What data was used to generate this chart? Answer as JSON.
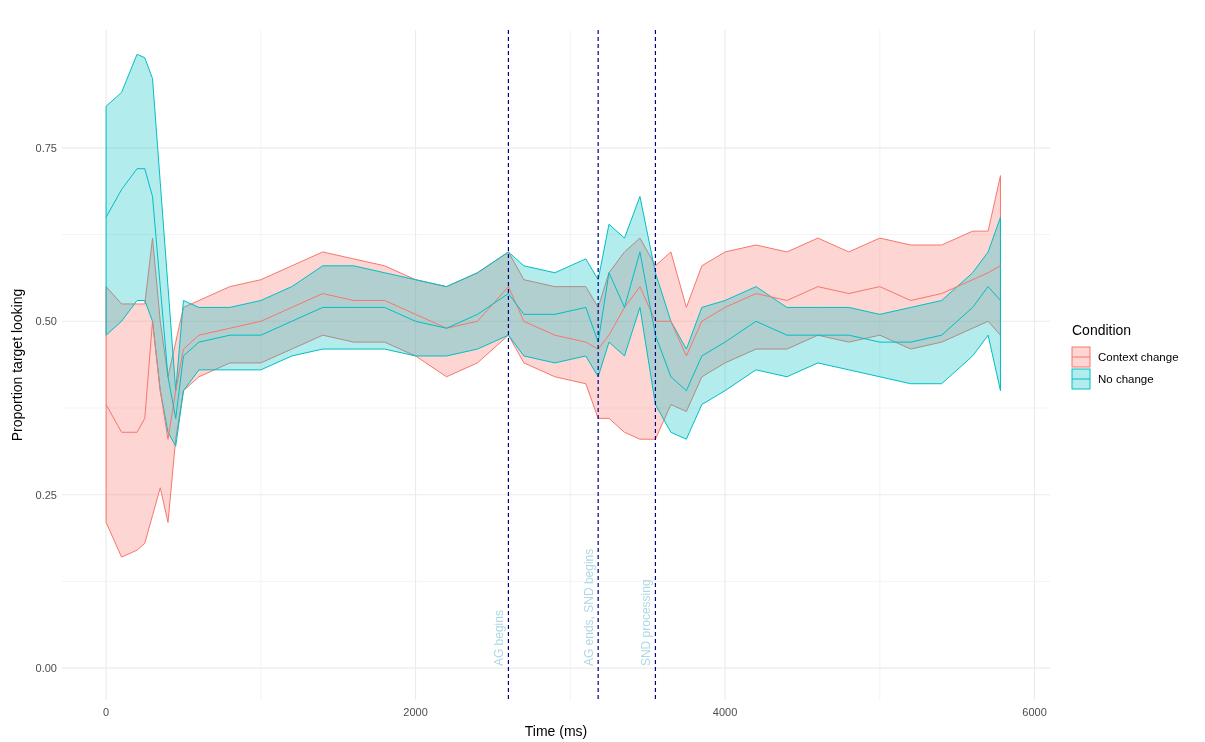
{
  "chart_data": {
    "type": "line",
    "xlabel": "Time (ms)",
    "ylabel": "Proportion target looking",
    "legend_title": "Condition",
    "legend": "right",
    "grid": true,
    "xlim": [
      -285,
      6100
    ],
    "ylim": [
      -0.046,
      0.92
    ],
    "xticks": [
      0,
      {
        "value": 1000,
        "label": null
      },
      2000,
      {
        "value": 3000,
        "label": null
      },
      4000,
      {
        "value": 5000,
        "label": null
      },
      6000
    ],
    "yticks": [
      {
        "value": 0,
        "label": "0.00"
      },
      {
        "value": 0.125,
        "label": null
      },
      {
        "value": 0.25,
        "label": "0.25"
      },
      {
        "value": 0.375,
        "label": null
      },
      {
        "value": 0.5,
        "label": "0.50"
      },
      {
        "value": 0.625,
        "label": null
      },
      {
        "value": 0.75,
        "label": "0.75"
      }
    ],
    "x": [
      0,
      100,
      200,
      250,
      300,
      350,
      400,
      450,
      500,
      600,
      800,
      1000,
      1200,
      1400,
      1600,
      1800,
      2000,
      2200,
      2400,
      2600,
      2700,
      2900,
      3100,
      3180,
      3250,
      3350,
      3450,
      3550,
      3650,
      3750,
      3850,
      4000,
      4200,
      4400,
      4600,
      4800,
      5000,
      5200,
      5400,
      5600,
      5700,
      5780
    ],
    "series": [
      {
        "name": "Context change",
        "color": "#f8766d",
        "values": [
          0.38,
          0.34,
          0.34,
          0.36,
          0.5,
          0.4,
          0.33,
          0.4,
          0.46,
          0.48,
          0.49,
          0.5,
          0.52,
          0.54,
          0.53,
          0.53,
          0.51,
          0.49,
          0.5,
          0.55,
          0.5,
          0.48,
          0.47,
          0.46,
          0.48,
          0.52,
          0.55,
          0.5,
          0.5,
          0.45,
          0.5,
          0.52,
          0.54,
          0.53,
          0.55,
          0.54,
          0.55,
          0.53,
          0.54,
          0.56,
          0.57,
          0.58
        ],
        "lower": [
          0.21,
          0.16,
          0.17,
          0.18,
          0.22,
          0.26,
          0.21,
          0.33,
          0.4,
          0.42,
          0.44,
          0.44,
          0.46,
          0.48,
          0.47,
          0.47,
          0.45,
          0.42,
          0.44,
          0.48,
          0.44,
          0.42,
          0.41,
          0.36,
          0.36,
          0.34,
          0.33,
          0.33,
          0.38,
          0.37,
          0.42,
          0.44,
          0.46,
          0.46,
          0.48,
          0.47,
          0.48,
          0.46,
          0.47,
          0.49,
          0.5,
          0.48
        ],
        "upper": [
          0.55,
          0.525,
          0.525,
          0.525,
          0.62,
          0.5,
          0.42,
          0.47,
          0.52,
          0.53,
          0.55,
          0.56,
          0.58,
          0.6,
          0.59,
          0.58,
          0.56,
          0.55,
          0.57,
          0.6,
          0.56,
          0.55,
          0.55,
          0.52,
          0.57,
          0.6,
          0.62,
          0.58,
          0.6,
          0.52,
          0.58,
          0.6,
          0.61,
          0.6,
          0.62,
          0.6,
          0.62,
          0.61,
          0.61,
          0.63,
          0.63,
          0.71
        ]
      },
      {
        "name": "No change",
        "color": "#00bfc4",
        "values": [
          0.65,
          0.69,
          0.72,
          0.72,
          0.68,
          0.55,
          0.42,
          0.36,
          0.45,
          0.47,
          0.48,
          0.48,
          0.5,
          0.52,
          0.52,
          0.52,
          0.5,
          0.49,
          0.51,
          0.54,
          0.51,
          0.51,
          0.52,
          0.47,
          0.57,
          0.52,
          0.6,
          0.48,
          0.42,
          0.4,
          0.45,
          0.47,
          0.5,
          0.48,
          0.48,
          0.48,
          0.47,
          0.47,
          0.48,
          0.52,
          0.55,
          0.53
        ],
        "lower": [
          0.48,
          0.5,
          0.53,
          0.53,
          0.5,
          0.4,
          0.34,
          0.32,
          0.4,
          0.43,
          0.43,
          0.43,
          0.45,
          0.46,
          0.46,
          0.46,
          0.45,
          0.45,
          0.46,
          0.48,
          0.45,
          0.44,
          0.45,
          0.42,
          0.47,
          0.45,
          0.52,
          0.38,
          0.34,
          0.33,
          0.38,
          0.4,
          0.43,
          0.42,
          0.44,
          0.43,
          0.42,
          0.41,
          0.41,
          0.45,
          0.48,
          0.4
        ],
        "upper": [
          0.81,
          0.83,
          0.885,
          0.88,
          0.85,
          0.7,
          0.55,
          0.4,
          0.53,
          0.52,
          0.52,
          0.53,
          0.55,
          0.58,
          0.58,
          0.57,
          0.56,
          0.55,
          0.57,
          0.6,
          0.58,
          0.57,
          0.59,
          0.56,
          0.64,
          0.62,
          0.68,
          0.57,
          0.5,
          0.46,
          0.52,
          0.53,
          0.55,
          0.52,
          0.52,
          0.52,
          0.51,
          0.52,
          0.53,
          0.57,
          0.6,
          0.65
        ]
      }
    ],
    "ref_lines": [
      {
        "axis": "x",
        "value": 2600,
        "label": "AG begins",
        "color": "#00008b",
        "line_style": "dashed"
      },
      {
        "axis": "x",
        "value": 3180,
        "label": "AG ends, SND begins",
        "color": "#00008b",
        "line_style": "dashed"
      },
      {
        "axis": "x",
        "value": 3550,
        "label": "SND processing",
        "color": "#00008b",
        "line_style": "dashed"
      }
    ]
  }
}
